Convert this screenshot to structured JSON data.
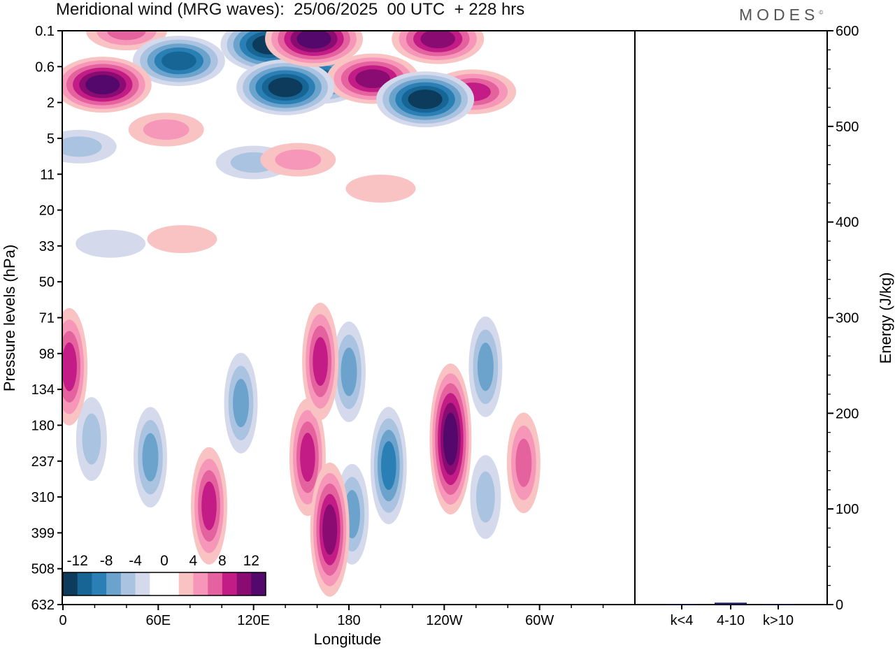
{
  "header": {
    "title": "Meridional wind (MRG waves):  25/06/2025  00 UTC  + 228 hrs",
    "brand": "MODES",
    "brand_mark": "©"
  },
  "chart_data": [
    {
      "type": "heatmap",
      "title": "Meridional wind (MRG waves):  25/06/2025  00 UTC  + 228 hrs",
      "xlabel": "Longitude",
      "ylabel": "Pressure levels (hPa)",
      "x_ticks": [
        "0",
        "60E",
        "120E",
        "180",
        "120W",
        "60W"
      ],
      "y_ticks": [
        "0.1",
        "0.6",
        "2",
        "5",
        "11",
        "20",
        "33",
        "50",
        "71",
        "98",
        "134",
        "180",
        "237",
        "310",
        "399",
        "508",
        "632"
      ],
      "colorbar": {
        "labels": [
          "-12",
          "-8",
          "-4",
          "0",
          "4",
          "8",
          "12"
        ],
        "colors": [
          "#0d3b5c",
          "#166594",
          "#2a7fb4",
          "#6ca3cc",
          "#a9c3e0",
          "#d4d9ec",
          "#ffffff",
          "#ffffff",
          "#f9c3c3",
          "#f697b9",
          "#e4629e",
          "#c31c86",
          "#8a0c72",
          "#54086b"
        ]
      },
      "color_scale": {
        "negative": [
          "#d4d9ec",
          "#a9c3e0",
          "#6ca3cc",
          "#2a7fb4",
          "#166594",
          "#0d3b5c"
        ],
        "positive": [
          "#f9c3c3",
          "#f697b9",
          "#e4629e",
          "#c31c86",
          "#8a0c72",
          "#54086b"
        ]
      },
      "features": [
        {
          "sign": 1,
          "level": 6,
          "lon": 25,
          "p": 1.1
        },
        {
          "sign": 1,
          "level": 3,
          "lon": 40,
          "p": 0.1
        },
        {
          "sign": -1,
          "level": 5,
          "lon": 73,
          "p": 0.45
        },
        {
          "sign": -1,
          "level": 6,
          "lon": 130,
          "p": 0.2
        },
        {
          "sign": -1,
          "level": 6,
          "lon": 140,
          "p": 1.2
        },
        {
          "sign": -1,
          "level": 5,
          "lon": 162,
          "p": 0.9
        },
        {
          "sign": 1,
          "level": 6,
          "lon": 158,
          "p": 0.15
        },
        {
          "sign": 1,
          "level": 5,
          "lon": 195,
          "p": 0.9
        },
        {
          "sign": -1,
          "level": 6,
          "lon": 228,
          "p": 1.8
        },
        {
          "sign": 1,
          "level": 5,
          "lon": 236,
          "p": 0.15
        },
        {
          "sign": 1,
          "level": 4,
          "lon": 258,
          "p": 1.4
        },
        {
          "sign": 1,
          "level": 2,
          "lon": 65,
          "p": 4.0
        },
        {
          "sign": -1,
          "level": 2,
          "lon": 10,
          "p": 6.0
        },
        {
          "sign": -1,
          "level": 2,
          "lon": 120,
          "p": 8.5
        },
        {
          "sign": 1,
          "level": 2,
          "lon": 148,
          "p": 8.0
        },
        {
          "sign": 1,
          "level": 1,
          "lon": 200,
          "p": 14.0
        },
        {
          "sign": 1,
          "level": 1,
          "lon": 75,
          "p": 30.0
        },
        {
          "sign": -1,
          "level": 1,
          "lon": 30,
          "p": 32.0
        },
        {
          "sign": 1,
          "level": 4,
          "lon": 4,
          "p": 110
        },
        {
          "sign": -1,
          "level": 2,
          "lon": 18,
          "p": 200
        },
        {
          "sign": -1,
          "level": 3,
          "lon": 55,
          "p": 230
        },
        {
          "sign": 1,
          "level": 4,
          "lon": 92,
          "p": 330
        },
        {
          "sign": -1,
          "level": 3,
          "lon": 112,
          "p": 150
        },
        {
          "sign": 1,
          "level": 4,
          "lon": 154,
          "p": 230
        },
        {
          "sign": 1,
          "level": 5,
          "lon": 168,
          "p": 390
        },
        {
          "sign": 1,
          "level": 4,
          "lon": 162,
          "p": 105
        },
        {
          "sign": -1,
          "level": 3,
          "lon": 180,
          "p": 115
        },
        {
          "sign": -1,
          "level": 4,
          "lon": 205,
          "p": 245
        },
        {
          "sign": -1,
          "level": 3,
          "lon": 182,
          "p": 350
        },
        {
          "sign": 1,
          "level": 6,
          "lon": 244,
          "p": 200
        },
        {
          "sign": -1,
          "level": 3,
          "lon": 266,
          "p": 110
        },
        {
          "sign": -1,
          "level": 2,
          "lon": 266,
          "p": 310
        },
        {
          "sign": 1,
          "level": 3,
          "lon": 290,
          "p": 240
        }
      ]
    },
    {
      "type": "bar",
      "ylabel": "Energy (J/kg)",
      "categories": [
        "k<4",
        "4-10",
        "k>10"
      ],
      "values": [
        0.5,
        2,
        0.5
      ],
      "ylim": [
        0,
        600
      ],
      "y_ticks": [
        "0",
        "100",
        "200",
        "300",
        "400",
        "500",
        "600"
      ],
      "colors": [
        "#1a1a5c",
        "#1a1a5c",
        "#1a1a5c"
      ]
    }
  ]
}
